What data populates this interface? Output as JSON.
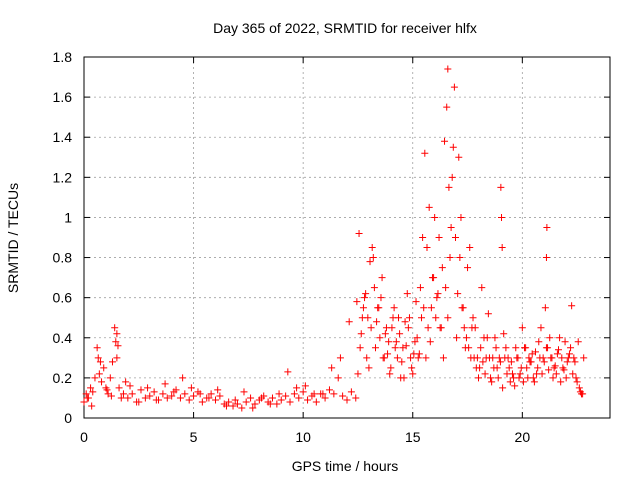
{
  "chart_data": {
    "type": "scatter",
    "title": "Day 365 of 2022, SRMTID for receiver hlfx",
    "xlabel": "GPS time / hours",
    "ylabel": "SRMTID / TECUs",
    "xlim": [
      0,
      24
    ],
    "ylim": [
      0,
      1.8
    ],
    "xticks": [
      0,
      5,
      10,
      15,
      20
    ],
    "xtick_labels": [
      "0",
      "5",
      "10",
      "15",
      "20"
    ],
    "yticks": [
      0,
      0.2,
      0.4,
      0.6,
      0.8,
      1,
      1.2,
      1.4,
      1.6,
      1.8
    ],
    "ytick_labels": [
      "0",
      "0.2",
      "0.4",
      "0.6",
      "0.8",
      "1",
      "1.2",
      "1.4",
      "1.6",
      "1.8"
    ],
    "grid": true,
    "marker": "+",
    "color": "#ff0000",
    "series": [
      {
        "name": "SRMTID",
        "x": [
          0.0,
          0.1,
          0.2,
          0.3,
          0.4,
          0.5,
          0.6,
          0.7,
          0.8,
          0.9,
          1.0,
          1.1,
          1.2,
          1.3,
          1.4,
          1.5,
          1.6,
          1.7,
          1.8,
          1.9,
          2.0,
          2.2,
          2.4,
          2.6,
          2.8,
          3.0,
          3.2,
          3.4,
          3.6,
          3.8,
          4.0,
          4.2,
          4.4,
          4.6,
          4.8,
          5.0,
          5.2,
          5.4,
          5.6,
          5.8,
          6.0,
          6.2,
          6.4,
          6.6,
          6.8,
          7.0,
          7.2,
          7.4,
          7.6,
          7.8,
          8.0,
          8.2,
          8.4,
          8.6,
          8.8,
          9.0,
          9.2,
          9.4,
          9.6,
          9.8,
          10.0,
          10.2,
          10.4,
          10.6,
          10.8,
          11.0,
          11.2,
          11.4,
          11.6,
          11.8,
          12.0,
          12.2,
          12.4,
          12.5,
          12.6,
          12.7,
          12.8,
          12.9,
          13.0,
          13.1,
          13.2,
          13.3,
          13.4,
          13.5,
          13.6,
          13.7,
          13.8,
          13.9,
          14.0,
          14.1,
          14.2,
          14.3,
          14.4,
          14.5,
          14.6,
          14.7,
          14.8,
          14.9,
          15.0,
          15.1,
          15.2,
          15.3,
          15.4,
          15.5,
          15.6,
          15.7,
          15.8,
          15.9,
          16.0,
          16.1,
          16.2,
          16.3,
          16.4,
          16.5,
          16.6,
          16.7,
          16.8,
          16.9,
          17.0,
          17.1,
          17.2,
          17.3,
          17.4,
          17.5,
          17.6,
          17.7,
          17.8,
          17.9,
          18.0,
          18.1,
          18.2,
          18.3,
          18.4,
          18.5,
          18.6,
          18.7,
          18.8,
          18.9,
          19.0,
          19.1,
          19.2,
          19.3,
          19.4,
          19.5,
          19.6,
          19.7,
          19.8,
          19.9,
          20.0,
          20.1,
          20.2,
          20.3,
          20.4,
          20.5,
          20.6,
          20.7,
          20.8,
          20.9,
          21.0,
          21.1,
          21.2,
          21.3,
          21.4,
          21.5,
          21.6,
          21.7,
          21.8,
          21.9,
          22.0,
          22.1,
          22.2,
          22.3,
          22.4,
          22.5,
          22.6,
          22.7,
          22.8,
          0.15,
          0.35,
          0.65,
          0.75,
          1.05,
          1.25,
          1.45,
          1.5,
          1.55,
          2.1,
          2.5,
          2.9,
          3.3,
          3.7,
          4.1,
          4.5,
          4.9,
          5.3,
          5.7,
          6.1,
          6.5,
          6.9,
          7.3,
          7.7,
          8.1,
          8.5,
          8.9,
          9.3,
          9.7,
          10.1,
          10.5,
          10.9,
          11.3,
          11.7,
          12.1,
          12.45,
          12.55,
          12.65,
          12.75,
          12.85,
          12.95,
          13.05,
          13.15,
          13.25,
          13.35,
          13.45,
          13.55,
          13.65,
          13.75,
          13.85,
          13.95,
          14.05,
          14.15,
          14.25,
          14.35,
          14.45,
          14.55,
          14.65,
          14.75,
          14.85,
          14.95,
          15.05,
          15.15,
          15.25,
          15.35,
          15.45,
          15.55,
          15.65,
          15.75,
          15.85,
          15.95,
          16.05,
          16.15,
          16.25,
          16.35,
          16.45,
          16.55,
          16.6,
          16.65,
          16.75,
          16.85,
          16.95,
          17.05,
          17.15,
          17.25,
          17.35,
          17.45,
          17.55,
          17.65,
          17.75,
          17.85,
          17.95,
          18.05,
          18.15,
          18.25,
          18.35,
          18.45,
          18.55,
          18.65,
          18.75,
          18.85,
          18.95,
          19.02,
          19.05,
          19.08,
          19.15,
          19.25,
          19.35,
          19.45,
          19.55,
          19.65,
          19.75,
          19.85,
          19.95,
          20.05,
          20.15,
          20.25,
          20.35,
          20.45,
          20.55,
          20.65,
          20.75,
          20.85,
          20.95,
          21.05,
          21.1,
          21.12,
          21.15,
          21.25,
          21.35,
          21.45,
          21.55,
          21.65,
          21.75,
          21.85,
          21.95,
          22.05,
          22.15,
          22.25,
          22.35,
          22.45,
          22.55,
          22.65,
          22.75
        ],
        "y": [
          0.08,
          0.12,
          0.1,
          0.15,
          0.13,
          0.2,
          0.35,
          0.22,
          0.18,
          0.25,
          0.15,
          0.12,
          0.2,
          0.28,
          0.45,
          0.3,
          0.15,
          0.1,
          0.12,
          0.18,
          0.1,
          0.12,
          0.08,
          0.14,
          0.1,
          0.11,
          0.13,
          0.09,
          0.12,
          0.1,
          0.11,
          0.14,
          0.1,
          0.12,
          0.09,
          0.11,
          0.13,
          0.08,
          0.1,
          0.12,
          0.09,
          0.11,
          0.07,
          0.08,
          0.06,
          0.07,
          0.05,
          0.08,
          0.1,
          0.07,
          0.09,
          0.11,
          0.08,
          0.1,
          0.07,
          0.09,
          0.11,
          0.08,
          0.12,
          0.1,
          0.13,
          0.09,
          0.11,
          0.08,
          0.12,
          0.1,
          0.14,
          0.12,
          0.2,
          0.11,
          0.09,
          0.13,
          0.1,
          0.22,
          0.35,
          0.5,
          0.6,
          0.3,
          0.25,
          0.45,
          0.8,
          0.35,
          0.55,
          0.4,
          0.7,
          0.3,
          0.45,
          0.38,
          0.25,
          0.5,
          0.35,
          0.3,
          0.42,
          0.28,
          0.2,
          0.36,
          0.45,
          0.3,
          0.22,
          0.38,
          0.4,
          0.32,
          0.5,
          0.55,
          0.3,
          0.45,
          0.38,
          0.7,
          1.0,
          0.6,
          0.9,
          0.45,
          0.3,
          0.65,
          0.5,
          0.8,
          1.2,
          1.65,
          0.4,
          1.3,
          1.0,
          0.55,
          0.35,
          0.75,
          0.85,
          0.45,
          0.3,
          0.25,
          0.2,
          0.35,
          0.28,
          0.22,
          0.4,
          0.3,
          0.18,
          0.25,
          0.35,
          0.2,
          0.28,
          0.15,
          0.3,
          0.22,
          0.25,
          0.28,
          0.2,
          0.35,
          0.3,
          0.22,
          0.45,
          0.35,
          0.25,
          0.3,
          0.28,
          0.2,
          0.33,
          0.25,
          0.3,
          0.22,
          0.28,
          0.35,
          0.24,
          0.3,
          0.2,
          0.26,
          0.32,
          0.4,
          0.3,
          0.24,
          0.2,
          0.3,
          0.35,
          0.22,
          0.28,
          0.18,
          0.15,
          0.12,
          0.3,
          0.1,
          0.06,
          0.3,
          0.28,
          0.14,
          0.11,
          0.38,
          0.42,
          0.36,
          0.16,
          0.08,
          0.15,
          0.09,
          0.17,
          0.13,
          0.2,
          0.15,
          0.12,
          0.1,
          0.14,
          0.06,
          0.09,
          0.13,
          0.05,
          0.1,
          0.07,
          0.12,
          0.23,
          0.15,
          0.16,
          0.12,
          0.12,
          0.25,
          0.3,
          0.48,
          0.58,
          0.92,
          0.42,
          0.55,
          0.62,
          0.5,
          0.78,
          0.85,
          0.65,
          0.48,
          0.55,
          0.6,
          0.3,
          0.42,
          0.32,
          0.22,
          0.45,
          0.55,
          0.38,
          0.5,
          0.2,
          0.35,
          0.48,
          0.62,
          0.5,
          0.25,
          0.32,
          0.58,
          0.3,
          0.65,
          0.9,
          1.32,
          0.85,
          1.05,
          0.55,
          0.7,
          0.5,
          0.62,
          0.45,
          0.75,
          1.38,
          1.55,
          1.74,
          1.15,
          0.95,
          1.35,
          0.9,
          0.62,
          0.8,
          0.55,
          0.45,
          0.4,
          0.35,
          0.3,
          0.5,
          0.45,
          0.3,
          0.25,
          0.65,
          0.4,
          0.3,
          0.52,
          0.2,
          0.3,
          0.4,
          0.25,
          0.3,
          1.15,
          1.0,
          0.85,
          0.42,
          0.35,
          0.3,
          0.18,
          0.22,
          0.16,
          0.3,
          0.2,
          0.25,
          0.18,
          0.35,
          0.2,
          0.28,
          0.32,
          0.18,
          0.22,
          0.38,
          0.45,
          0.3,
          0.55,
          0.8,
          0.95,
          0.35,
          0.4,
          0.3,
          0.25,
          0.22,
          0.34,
          0.18,
          0.25,
          0.38,
          0.28,
          0.32,
          0.56,
          0.3,
          0.2,
          0.38,
          0.13,
          0.12
        ]
      }
    ]
  }
}
